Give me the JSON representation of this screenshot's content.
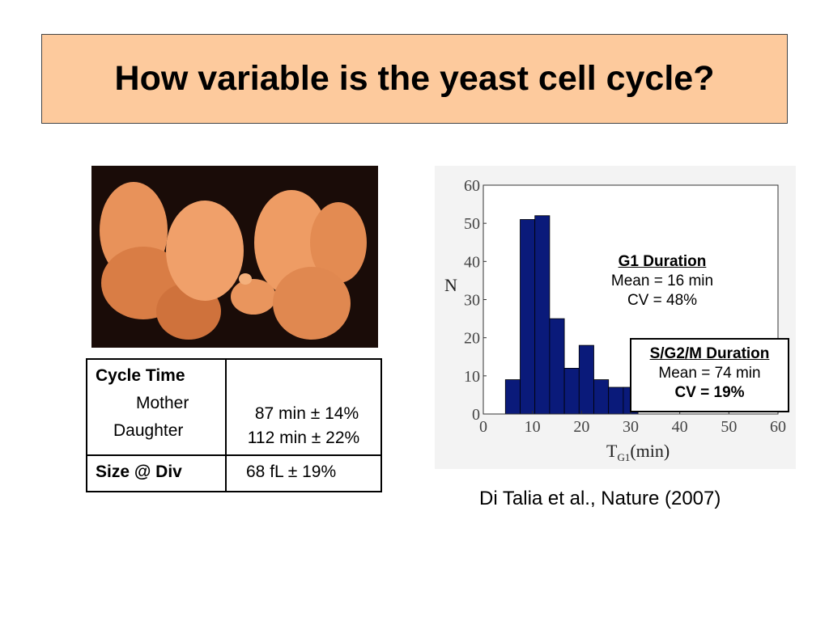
{
  "header": {
    "title": "How variable is the yeast cell cycle?"
  },
  "table": {
    "rows": [
      [
        [
          "Cycle Time",
          "Mother",
          "Daughter"
        ],
        [
          "87 min ± 14%",
          "112 min ± 22%"
        ]
      ],
      [
        [
          "Size @ Div"
        ],
        [
          "68 fL ± 19%"
        ]
      ]
    ]
  },
  "chart_data": {
    "type": "histogram",
    "bins": [
      4.5,
      7.5,
      10.5,
      13.5,
      16.5,
      19.5,
      22.5,
      25.5,
      28.5,
      31.5
    ],
    "values": [
      9,
      51,
      52,
      25,
      12,
      18,
      9,
      7,
      7
    ],
    "color": "#0a1a7a",
    "xlim": [
      0,
      60
    ],
    "xticks": [
      0,
      10,
      20,
      30,
      40,
      50,
      60
    ],
    "ylim": [
      0,
      60
    ],
    "yticks": [
      0,
      10,
      20,
      30,
      40,
      50,
      60
    ],
    "y_label": "N",
    "x_label": {
      "main": "T",
      "sub": "G1",
      "rest": "(min)"
    },
    "annotations": [
      {
        "heading": "G1 Duration",
        "lines": [
          "Mean = 16 min",
          "CV = 48%"
        ]
      },
      {
        "heading": "S/G2/M Duration",
        "lines": [
          "Mean = 74 min",
          "CV = 19%"
        ]
      }
    ]
  },
  "citation": "Di Talia et al., Nature (2007)"
}
